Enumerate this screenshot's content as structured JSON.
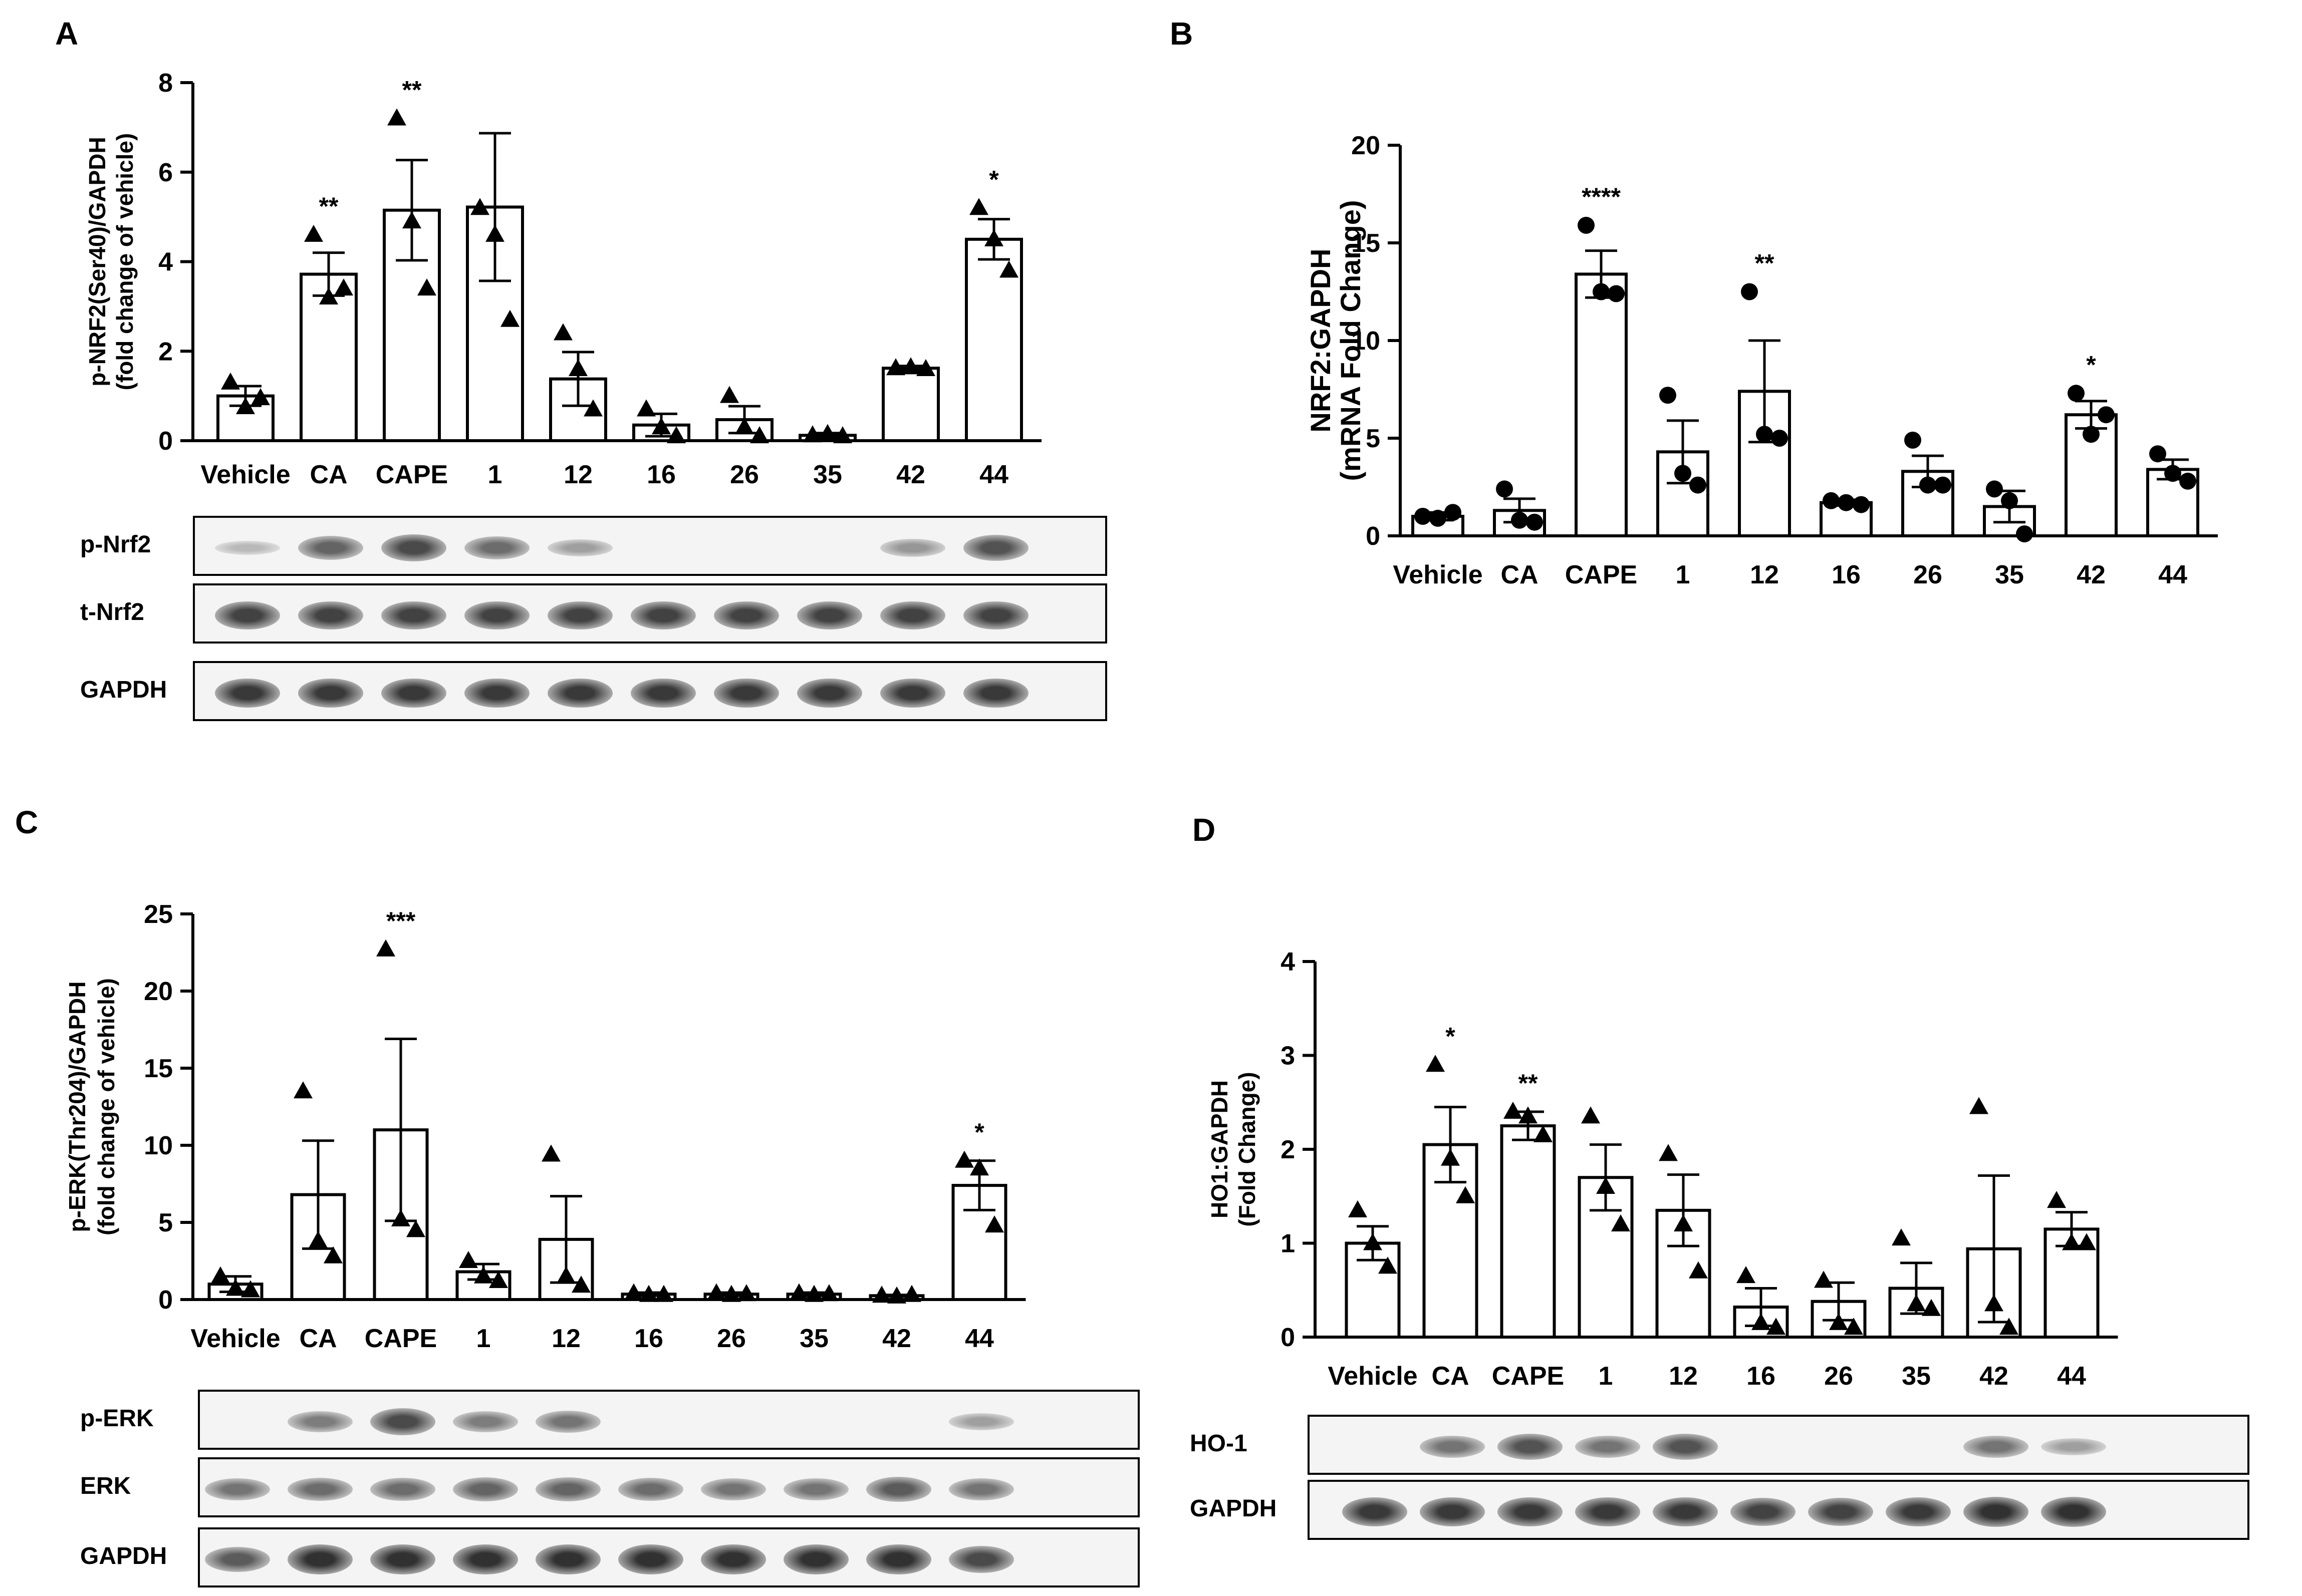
{
  "panels": {
    "A": "A",
    "B": "B",
    "C": "C",
    "D": "D"
  },
  "chart_data": [
    {
      "id": "A",
      "type": "bar",
      "categories": [
        "Vehicle",
        "CA",
        "CAPE",
        "1",
        "12",
        "16",
        "26",
        "35",
        "42",
        "44"
      ],
      "ylabel": [
        "p-NRF2(Ser40)/GAPDH",
        "(fold change of vehicle)"
      ],
      "ylim": [
        0,
        8
      ],
      "yticks": [
        0,
        2,
        4,
        6,
        8
      ],
      "marker": "triangle",
      "values": [
        1.0,
        3.72,
        5.15,
        5.22,
        1.38,
        0.35,
        0.47,
        0.12,
        1.62,
        4.5
      ],
      "errors": [
        0.22,
        0.48,
        1.12,
        1.65,
        0.6,
        0.25,
        0.3,
        0.05,
        0.05,
        0.45
      ],
      "points": [
        [
          1.3,
          0.75,
          0.95
        ],
        [
          4.6,
          3.2,
          3.4
        ],
        [
          7.2,
          4.9,
          3.4
        ],
        [
          5.2,
          4.6,
          2.7
        ],
        [
          2.4,
          1.6,
          0.7
        ],
        [
          0.7,
          0.3,
          0.1
        ],
        [
          1.0,
          0.3,
          0.1
        ],
        [
          0.12,
          0.15,
          0.1
        ],
        [
          1.62,
          1.64,
          1.6
        ],
        [
          5.2,
          4.5,
          3.8
        ]
      ],
      "significance": [
        "",
        "**",
        "**",
        "",
        "",
        "",
        "",
        "",
        "",
        "*"
      ],
      "blots": [
        {
          "label": "p-Nrf2",
          "intensity": [
            0.15,
            0.65,
            0.8,
            0.6,
            0.3,
            0.0,
            0.0,
            0.0,
            0.35,
            0.75
          ]
        },
        {
          "label": "t-Nrf2",
          "intensity": [
            0.85,
            0.85,
            0.85,
            0.85,
            0.85,
            0.85,
            0.85,
            0.85,
            0.85,
            0.85
          ]
        },
        {
          "label": "GAPDH",
          "intensity": [
            0.9,
            0.9,
            0.9,
            0.9,
            0.9,
            0.9,
            0.9,
            0.9,
            0.9,
            0.9
          ]
        }
      ]
    },
    {
      "id": "B",
      "type": "bar",
      "categories": [
        "Vehicle",
        "CA",
        "CAPE",
        "1",
        "12",
        "16",
        "26",
        "35",
        "42",
        "44"
      ],
      "ylabel": [
        "NRF2:GAPDH",
        "(mRNA Fold Change)"
      ],
      "ylim": [
        0,
        20
      ],
      "yticks": [
        0,
        5,
        10,
        15,
        20
      ],
      "marker": "circle",
      "values": [
        1.0,
        1.3,
        13.4,
        4.3,
        7.4,
        1.7,
        3.3,
        1.5,
        6.2,
        3.4
      ],
      "errors": [
        0.2,
        0.6,
        1.2,
        1.6,
        2.6,
        0.15,
        0.8,
        0.8,
        0.7,
        0.5
      ],
      "points": [
        [
          1.0,
          0.9,
          1.2
        ],
        [
          2.4,
          0.8,
          0.7
        ],
        [
          15.9,
          12.5,
          12.4
        ],
        [
          7.2,
          3.2,
          2.6
        ],
        [
          12.5,
          5.2,
          5.0
        ],
        [
          1.8,
          1.7,
          1.6
        ],
        [
          4.9,
          2.6,
          2.6
        ],
        [
          2.4,
          1.8,
          0.1
        ],
        [
          7.3,
          5.2,
          6.2
        ],
        [
          4.2,
          3.2,
          2.8
        ]
      ],
      "significance": [
        "",
        "",
        "****",
        "",
        "**",
        "",
        "",
        "",
        "*",
        ""
      ],
      "blots": []
    },
    {
      "id": "C",
      "type": "bar",
      "categories": [
        "Vehicle",
        "CA",
        "CAPE",
        "1",
        "12",
        "16",
        "26",
        "35",
        "42",
        "44"
      ],
      "ylabel": [
        "p-ERK(Thr204)/GAPDH",
        "(fold change of vehicle)"
      ],
      "ylim": [
        0,
        25
      ],
      "yticks": [
        0,
        5,
        10,
        15,
        20,
        25
      ],
      "marker": "triangle",
      "values": [
        1.0,
        6.8,
        11.0,
        1.8,
        3.9,
        0.35,
        0.35,
        0.35,
        0.25,
        7.4
      ],
      "errors": [
        0.5,
        3.5,
        5.9,
        0.5,
        2.8,
        0.1,
        0.1,
        0.1,
        0.05,
        1.6
      ],
      "points": [
        [
          1.5,
          0.7,
          0.6
        ],
        [
          13.5,
          3.8,
          2.8
        ],
        [
          22.7,
          5.2,
          4.5
        ],
        [
          2.5,
          1.5,
          1.2
        ],
        [
          9.4,
          1.5,
          0.9
        ],
        [
          0.4,
          0.3,
          0.3
        ],
        [
          0.4,
          0.3,
          0.35
        ],
        [
          0.4,
          0.3,
          0.35
        ],
        [
          0.25,
          0.2,
          0.3
        ],
        [
          9.0,
          8.5,
          4.8
        ]
      ],
      "significance": [
        "",
        "",
        "***",
        "",
        "",
        "",
        "",
        "",
        "",
        "*"
      ],
      "blots": [
        {
          "label": "p-ERK",
          "intensity": [
            0.0,
            0.5,
            0.8,
            0.5,
            0.55,
            0.0,
            0.0,
            0.0,
            0.0,
            0.3
          ]
        },
        {
          "label": "ERK",
          "intensity": [
            0.55,
            0.6,
            0.6,
            0.65,
            0.65,
            0.6,
            0.55,
            0.55,
            0.7,
            0.55
          ]
        },
        {
          "label": "GAPDH",
          "intensity": [
            0.7,
            0.95,
            0.95,
            0.95,
            0.95,
            0.95,
            0.95,
            0.95,
            0.95,
            0.8
          ]
        }
      ]
    },
    {
      "id": "D",
      "type": "bar",
      "categories": [
        "Vehicle",
        "CA",
        "CAPE",
        "1",
        "12",
        "16",
        "26",
        "35",
        "42",
        "44"
      ],
      "ylabel": [
        "HO1:GAPDH",
        "(Fold  Change)"
      ],
      "ylim": [
        0,
        4
      ],
      "yticks": [
        0,
        1,
        2,
        3,
        4
      ],
      "marker": "triangle",
      "values": [
        1.0,
        2.05,
        2.25,
        1.7,
        1.35,
        0.32,
        0.38,
        0.52,
        0.94,
        1.15
      ],
      "errors": [
        0.18,
        0.4,
        0.15,
        0.35,
        0.38,
        0.2,
        0.2,
        0.27,
        0.78,
        0.18
      ],
      "points": [
        [
          1.35,
          1.0,
          0.75
        ],
        [
          2.9,
          1.9,
          1.5
        ],
        [
          2.4,
          2.35,
          2.15
        ],
        [
          2.35,
          1.6,
          1.2
        ],
        [
          1.95,
          1.2,
          0.7
        ],
        [
          0.65,
          0.15,
          0.1
        ],
        [
          0.6,
          0.15,
          0.1
        ],
        [
          1.05,
          0.35,
          0.3
        ],
        [
          2.45,
          0.35,
          0.1
        ],
        [
          1.45,
          1.0,
          1.0
        ]
      ],
      "significance": [
        "",
        "*",
        "**",
        "",
        "",
        "",
        "",
        "",
        "",
        ""
      ],
      "blots": [
        {
          "label": "HO-1",
          "intensity": [
            0.0,
            0.55,
            0.75,
            0.55,
            0.75,
            0.0,
            0.0,
            0.0,
            0.55,
            0.3
          ]
        },
        {
          "label": "GAPDH",
          "intensity": [
            0.9,
            0.9,
            0.9,
            0.9,
            0.9,
            0.85,
            0.85,
            0.9,
            0.95,
            0.95
          ]
        }
      ]
    }
  ]
}
